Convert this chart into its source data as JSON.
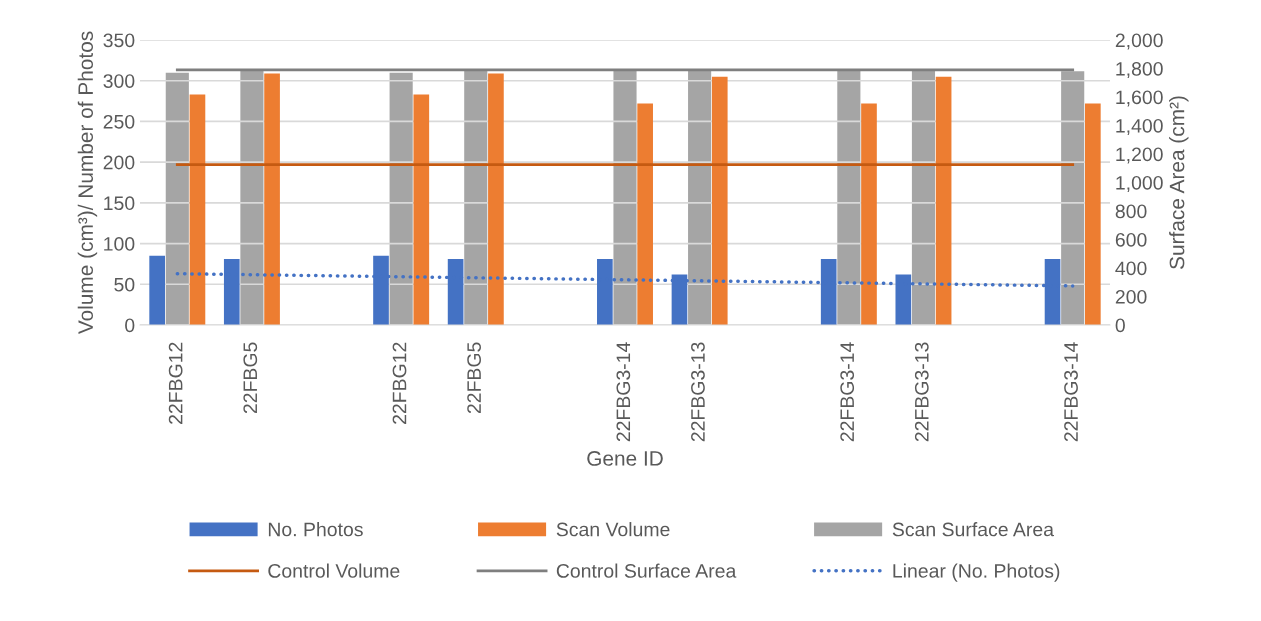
{
  "chart_data": {
    "type": "bar",
    "xlabel": "Gene ID",
    "ylabel": "Volume (cm³)/ Number of Photos",
    "y2label": "Surface Area (cm²)",
    "categories": [
      "22FBG12",
      "22FBG5",
      null,
      "22FBG12",
      "22FBG5",
      null,
      "22FBG3-14",
      "22FBG3-13",
      null,
      "22FBG3-14",
      "22FBG3-13",
      null,
      "22FBG3-14"
    ],
    "series": [
      {
        "name": "No. Photos",
        "color": "#4472c4",
        "values": [
          85,
          81,
          null,
          85,
          81,
          null,
          81,
          62,
          null,
          81,
          62,
          null,
          81
        ]
      },
      {
        "name": "Scan Volume",
        "color": "#ed7d31",
        "values": [
          283,
          309,
          null,
          283,
          309,
          null,
          272,
          305,
          null,
          272,
          305,
          null,
          272
        ]
      },
      {
        "name": "Scan Surface Area",
        "color": "#a5a5a5",
        "axis": "y2",
        "values": [
          1770,
          1790,
          null,
          1770,
          1790,
          null,
          1790,
          1790,
          null,
          1790,
          1790,
          null,
          1780
        ]
      },
      {
        "name": "Control Volume",
        "type": "line",
        "color": "#c55a11",
        "line_style": "solid",
        "values": [
          197,
          197,
          197,
          197,
          197,
          197,
          197,
          197,
          197,
          197,
          197,
          197,
          197
        ]
      },
      {
        "name": "Control Surface Area",
        "type": "line",
        "color": "#7f7f7f",
        "axis": "y2",
        "line_style": "solid",
        "values": [
          1790,
          1790,
          1790,
          1790,
          1790,
          1790,
          1790,
          1790,
          1790,
          1790,
          1790,
          1790,
          1790
        ]
      },
      {
        "name": "Linear (No. Photos)",
        "type": "line",
        "color": "#4472c4",
        "line_style": "dotted",
        "values": [
          63,
          null,
          null,
          null,
          null,
          null,
          null,
          null,
          null,
          null,
          null,
          null,
          48
        ]
      }
    ],
    "ylim": [
      0,
      350
    ],
    "yticks": [
      0,
      50,
      100,
      150,
      200,
      250,
      300,
      350
    ],
    "y2lim": [
      0,
      2000
    ],
    "y2ticks": [
      0,
      200,
      400,
      600,
      800,
      {
        "value": 1000,
        "label": "1,000"
      },
      {
        "value": 1200,
        "label": "1,200"
      },
      {
        "value": 1400,
        "label": "1,400"
      },
      {
        "value": 1600,
        "label": "1,600"
      },
      {
        "value": 1800,
        "label": "1,800"
      },
      {
        "value": 2000,
        "label": "2,000"
      }
    ],
    "grid": "y",
    "legend": "bottom"
  }
}
